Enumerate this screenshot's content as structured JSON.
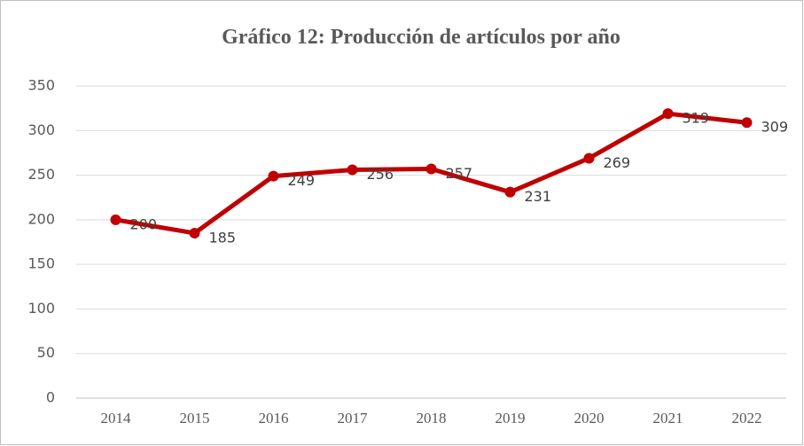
{
  "chart_data": {
    "type": "line",
    "title": "Gráfico 12: Producción de artículos por año",
    "categories": [
      "2014",
      "2015",
      "2016",
      "2017",
      "2018",
      "2019",
      "2020",
      "2021",
      "2022"
    ],
    "series": [
      {
        "name": "Producción",
        "color": "#c00000",
        "values": [
          200,
          185,
          249,
          256,
          257,
          231,
          269,
          319,
          309
        ]
      }
    ],
    "ylim": [
      0,
      350
    ],
    "yticks": [
      0,
      50,
      100,
      150,
      200,
      250,
      300,
      350
    ],
    "grid": true
  }
}
